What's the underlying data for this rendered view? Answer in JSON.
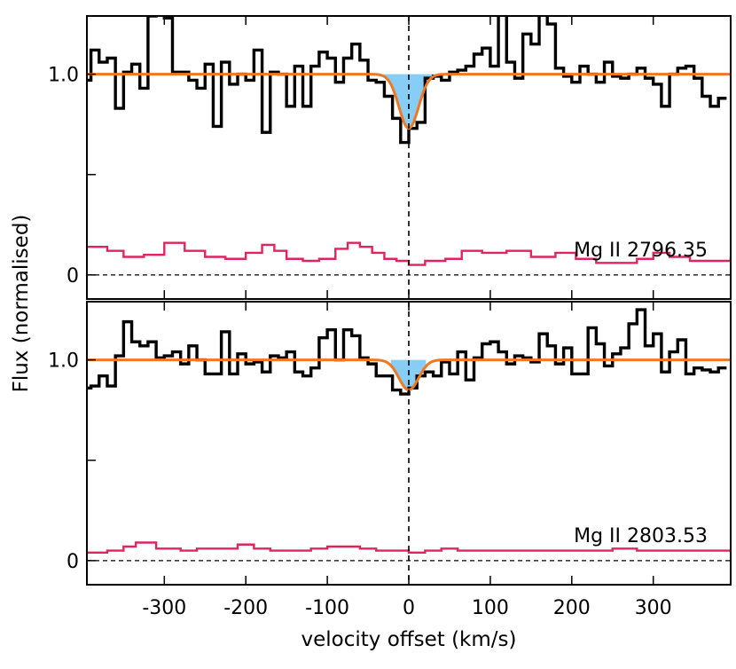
{
  "chart_data": {
    "type": "line",
    "xlabel": "velocity offset (km/s)",
    "ylabel": "Flux (normalised)",
    "xlim": [
      -395,
      395
    ],
    "x_ticks": [
      -300,
      -200,
      -100,
      0,
      100,
      200,
      300
    ],
    "x_tick_labels": [
      "-300",
      "-200",
      "-100",
      "0",
      "100",
      "200",
      "300"
    ],
    "colors": {
      "flux": "#000000",
      "error": "#e0245e",
      "fit": "#f07820",
      "absorption_fill": "#87cdf5"
    },
    "panels": [
      {
        "label": "Mg II 2796.35",
        "ylim": [
          -0.12,
          1.29
        ],
        "y_tick_values": [
          0,
          1.0
        ],
        "y_tick_labels": [
          "0",
          "1.0"
        ],
        "minor_y_ticks": [
          0.5
        ],
        "fill_range": [
          -32,
          33
        ],
        "fit": {
          "center": 0,
          "depth": 0.27,
          "sigma": 12
        },
        "flux": {
          "x": [
            -395,
            -385,
            -375,
            -365,
            -355,
            -345,
            -335,
            -325,
            -315,
            -305,
            -295,
            -285,
            -275,
            -265,
            -255,
            -245,
            -235,
            -225,
            -215,
            -205,
            -195,
            -185,
            -175,
            -165,
            -155,
            -145,
            -135,
            -125,
            -115,
            -105,
            -95,
            -85,
            -75,
            -65,
            -55,
            -45,
            -35,
            -25,
            -15,
            -5,
            5,
            15,
            25,
            35,
            45,
            55,
            65,
            75,
            85,
            95,
            105,
            115,
            125,
            135,
            145,
            155,
            165,
            175,
            185,
            195,
            205,
            215,
            225,
            235,
            245,
            255,
            265,
            275,
            285,
            295,
            305,
            315,
            325,
            335,
            345,
            355,
            365,
            375,
            385
          ],
          "y": [
            0.97,
            1.12,
            1.06,
            1.08,
            0.83,
            1.01,
            1.05,
            0.93,
            1.29,
            1.32,
            1.28,
            1.01,
            1.01,
            0.97,
            0.93,
            1.05,
            0.74,
            1.06,
            0.95,
            1.0,
            0.97,
            1.12,
            0.71,
            1.01,
            1.0,
            0.84,
            1.04,
            0.84,
            1.04,
            1.11,
            1.08,
            0.96,
            1.08,
            1.15,
            1.07,
            0.97,
            0.96,
            0.89,
            0.78,
            0.66,
            0.73,
            0.76,
            0.98,
            0.99,
            0.97,
            1.01,
            1.02,
            1.04,
            1.1,
            1.13,
            1.04,
            1.3,
            1.06,
            0.98,
            1.2,
            1.15,
            1.3,
            1.25,
            1.03,
            0.99,
            0.96,
            1.04,
            1.0,
            0.96,
            1.06,
            0.99,
            0.98,
            1.0,
            1.03,
            0.98,
            0.95,
            0.84,
            1.0,
            1.03,
            1.04,
            0.98,
            0.89,
            0.84,
            0.88
          ]
        },
        "error": {
          "x": [
            -395,
            -370,
            -350,
            -325,
            -300,
            -275,
            -250,
            -225,
            -200,
            -180,
            -165,
            -150,
            -130,
            -110,
            -90,
            -75,
            -60,
            -45,
            -30,
            -15,
            0,
            20,
            45,
            65,
            90,
            120,
            150,
            180,
            205,
            230,
            255,
            280,
            300,
            320,
            345,
            370,
            395
          ],
          "y": [
            0.14,
            0.12,
            0.09,
            0.1,
            0.16,
            0.12,
            0.09,
            0.08,
            0.11,
            0.15,
            0.12,
            0.08,
            0.07,
            0.08,
            0.13,
            0.16,
            0.14,
            0.11,
            0.08,
            0.07,
            0.05,
            0.07,
            0.08,
            0.12,
            0.11,
            0.12,
            0.09,
            0.11,
            0.08,
            0.06,
            0.06,
            0.08,
            0.11,
            0.09,
            0.07,
            0.07,
            0.09
          ]
        }
      },
      {
        "label": "Mg II 2803.53",
        "ylim": [
          -0.12,
          1.29
        ],
        "y_tick_values": [
          0,
          1.0
        ],
        "y_tick_labels": [
          "0",
          "1.0"
        ],
        "minor_y_ticks": [
          0.5
        ],
        "fill_range": [
          -22,
          21
        ],
        "fit": {
          "center": 0,
          "depth": 0.15,
          "sigma": 12
        },
        "flux": {
          "x": [
            -395,
            -385,
            -375,
            -365,
            -355,
            -345,
            -335,
            -325,
            -315,
            -305,
            -295,
            -285,
            -275,
            -265,
            -255,
            -245,
            -235,
            -225,
            -215,
            -205,
            -195,
            -185,
            -175,
            -165,
            -155,
            -145,
            -135,
            -125,
            -115,
            -105,
            -95,
            -85,
            -75,
            -65,
            -55,
            -45,
            -35,
            -25,
            -15,
            -5,
            5,
            15,
            25,
            35,
            45,
            55,
            65,
            75,
            85,
            95,
            105,
            115,
            125,
            135,
            145,
            155,
            165,
            175,
            185,
            195,
            205,
            215,
            225,
            235,
            245,
            255,
            265,
            275,
            285,
            295,
            305,
            315,
            325,
            335,
            345,
            355,
            365,
            375,
            385
          ],
          "y": [
            0.86,
            0.87,
            0.92,
            0.87,
            1.02,
            1.19,
            1.09,
            1.07,
            1.09,
            1.01,
            1.02,
            1.04,
            0.98,
            1.07,
            1.0,
            0.93,
            0.93,
            1.14,
            0.93,
            1.03,
            0.98,
            0.99,
            0.94,
            1.02,
            1.01,
            1.04,
            0.94,
            0.92,
            0.96,
            1.11,
            1.15,
            1.0,
            1.15,
            1.12,
            1.01,
            0.98,
            0.92,
            0.92,
            0.85,
            0.83,
            0.86,
            0.92,
            0.94,
            0.92,
            0.99,
            0.93,
            1.04,
            0.9,
            1.01,
            1.08,
            1.09,
            1.04,
            0.98,
            1.02,
            1.01,
            0.99,
            1.13,
            1.07,
            0.98,
            1.06,
            0.93,
            0.93,
            1.16,
            1.08,
            0.97,
            1.03,
            1.06,
            1.18,
            1.25,
            1.07,
            1.13,
            0.94,
            1.04,
            1.1,
            0.93,
            0.96,
            0.95,
            0.94,
            0.96
          ]
        },
        "error": {
          "x": [
            -395,
            -370,
            -350,
            -335,
            -310,
            -280,
            -260,
            -240,
            -210,
            -190,
            -170,
            -140,
            -120,
            -100,
            -80,
            -60,
            -40,
            -20,
            0,
            20,
            40,
            60,
            80,
            100,
            130,
            160,
            190,
            220,
            250,
            280,
            300,
            330,
            360,
            395
          ],
          "y": [
            0.04,
            0.05,
            0.07,
            0.09,
            0.06,
            0.05,
            0.06,
            0.06,
            0.08,
            0.06,
            0.05,
            0.05,
            0.06,
            0.07,
            0.07,
            0.06,
            0.05,
            0.05,
            0.04,
            0.05,
            0.06,
            0.05,
            0.05,
            0.05,
            0.05,
            0.05,
            0.05,
            0.05,
            0.06,
            0.05,
            0.05,
            0.05,
            0.05,
            0.04
          ]
        }
      }
    ]
  }
}
